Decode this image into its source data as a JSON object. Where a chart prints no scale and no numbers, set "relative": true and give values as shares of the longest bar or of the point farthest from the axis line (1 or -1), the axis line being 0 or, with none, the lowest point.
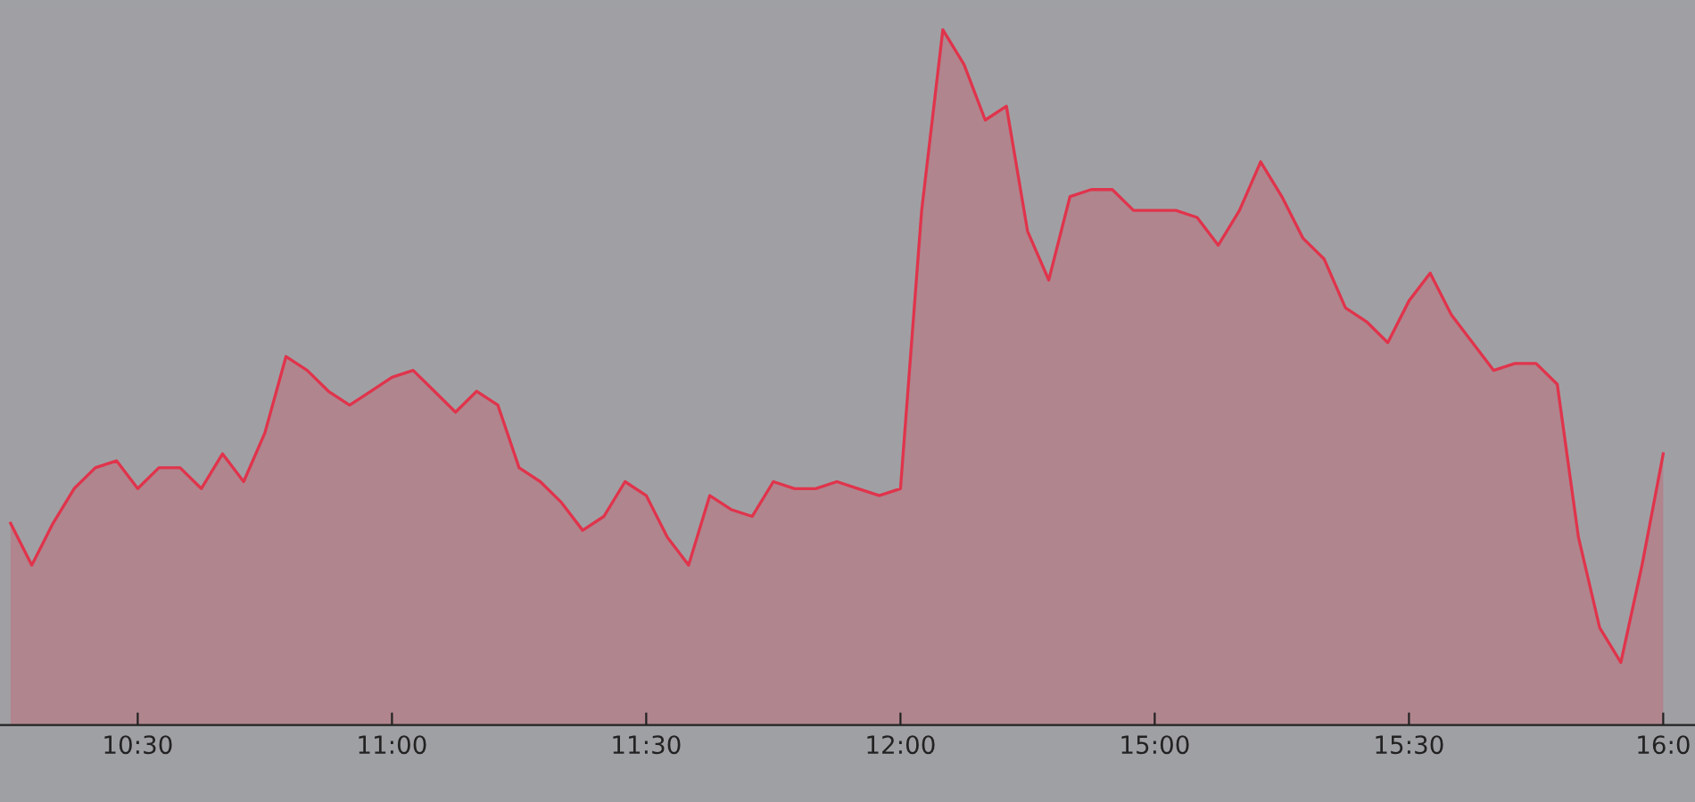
{
  "chart_data": {
    "type": "area",
    "relative": true,
    "grid": false,
    "marker": "none",
    "line_style": "solid",
    "categories": [
      null,
      null,
      null,
      null,
      null,
      null,
      "10:30",
      null,
      null,
      null,
      null,
      null,
      null,
      null,
      null,
      null,
      null,
      null,
      "11:00",
      null,
      null,
      null,
      null,
      null,
      null,
      null,
      null,
      null,
      null,
      null,
      "11:30",
      null,
      null,
      null,
      null,
      null,
      null,
      null,
      null,
      null,
      null,
      null,
      "12:00",
      null,
      null,
      null,
      null,
      null,
      null,
      null,
      null,
      null,
      null,
      null,
      "15:00",
      null,
      null,
      null,
      null,
      null,
      null,
      null,
      null,
      null,
      null,
      null,
      "15:30",
      null,
      null,
      null,
      null,
      null,
      null,
      null,
      null,
      null,
      null,
      null,
      "16:0"
    ],
    "series": [
      {
        "color": "#e0344c",
        "values": [
          0.29,
          0.23,
          0.29,
          0.34,
          0.37,
          0.38,
          0.34,
          0.37,
          0.37,
          0.34,
          0.39,
          0.35,
          0.42,
          0.53,
          0.51,
          0.48,
          0.46,
          0.48,
          0.5,
          0.51,
          0.48,
          0.45,
          0.48,
          0.46,
          0.37,
          0.35,
          0.32,
          0.28,
          0.3,
          0.35,
          0.33,
          0.27,
          0.23,
          0.33,
          0.31,
          0.3,
          0.35,
          0.34,
          0.34,
          0.35,
          0.34,
          0.33,
          0.34,
          0.74,
          1.0,
          0.95,
          0.87,
          0.89,
          0.71,
          0.64,
          0.76,
          0.77,
          0.77,
          0.74,
          0.74,
          0.74,
          0.73,
          0.69,
          0.74,
          0.81,
          0.76,
          0.7,
          0.67,
          0.6,
          0.58,
          0.55,
          0.61,
          0.65,
          0.59,
          0.55,
          0.51,
          0.52,
          0.52,
          0.49,
          0.27,
          0.14,
          0.09,
          0.23,
          0.39
        ]
      }
    ]
  }
}
